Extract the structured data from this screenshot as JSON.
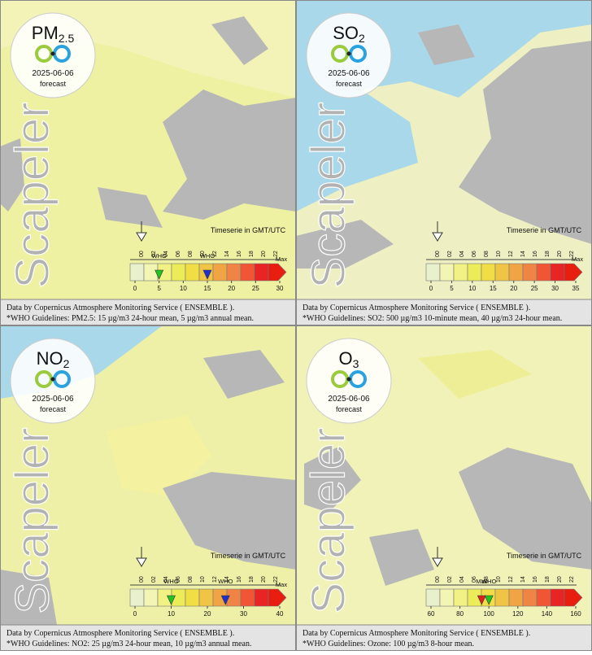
{
  "shared": {
    "watermark": "Scapeler",
    "date": "2025-06-06",
    "forecast": "forecast",
    "timeserie": "Timeserie in GMT/UTC",
    "source": "Data by Copernicus Atmosphere Monitoring Service ( ENSEMBLE ).",
    "time_labels": [
      "00",
      "02",
      "04",
      "06",
      "08",
      "10",
      "12",
      "14",
      "16",
      "18",
      "20",
      "22"
    ]
  },
  "panels": [
    {
      "pollutant": "PM",
      "subscript": "2.5",
      "end_label": "Max",
      "scale": {
        "lim": [
          0,
          30
        ],
        "ticks": [
          0,
          5,
          10,
          15,
          20,
          25,
          30
        ]
      },
      "markers": [
        {
          "label": "WHO",
          "value": 5,
          "color": "#22c322"
        },
        {
          "label": "WHO",
          "value": 15,
          "color": "#1f2fd0"
        }
      ],
      "guideline": "*WHO Guidelines: PM2.5: 15 µg/m3 24-hour mean, 5 µg/m3 annual mean."
    },
    {
      "pollutant": "SO",
      "subscript": "2",
      "end_label": "Max",
      "scale": {
        "lim": [
          0,
          35
        ],
        "ticks": [
          0,
          5,
          10,
          15,
          20,
          25,
          30,
          35
        ]
      },
      "markers": [],
      "guideline": "*WHO Guidelines: SO2: 500 µg/m3 10-minute mean, 40 µg/m3 24-hour mean."
    },
    {
      "pollutant": "NO",
      "subscript": "2",
      "end_label": "Max",
      "scale": {
        "lim": [
          0,
          40
        ],
        "ticks": [
          0,
          10,
          20,
          30,
          40
        ]
      },
      "markers": [
        {
          "label": "WHO",
          "value": 10,
          "color": "#22c322"
        },
        {
          "label": "WHO",
          "value": 25,
          "color": "#1f2fd0"
        }
      ],
      "guideline": "*WHO Guidelines: NO2: 25 µg/m3 24-hour mean, 10 µg/m3 annual mean."
    },
    {
      "pollutant": "O",
      "subscript": "3",
      "scale": {
        "lim": [
          60,
          160
        ],
        "ticks": [
          60,
          80,
          100,
          120,
          140,
          160
        ]
      },
      "markers": [
        {
          "label": "Max",
          "value": 95,
          "color": "#e02020"
        },
        {
          "label": "WHO",
          "value": 100,
          "color": "#22c322"
        }
      ],
      "guideline": "*WHO Guidelines: Ozone: 100 µg/m3 8-hour mean."
    }
  ]
}
